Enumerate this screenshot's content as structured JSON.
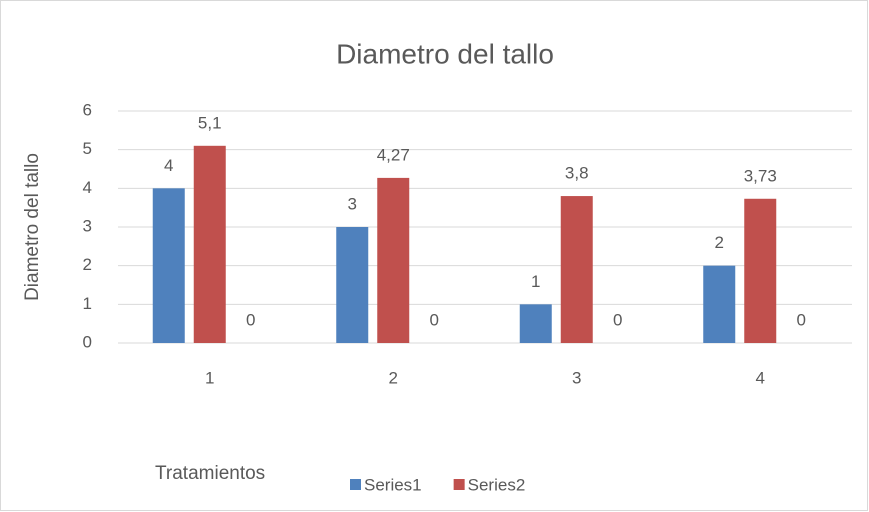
{
  "chart_data": {
    "type": "bar",
    "title": "Diametro del tallo",
    "ylabel": "Diametro del tallo",
    "xlabel": "Tratamientos",
    "categories": [
      "1",
      "2",
      "3",
      "4"
    ],
    "series": [
      {
        "name": "Series1",
        "color": "#4f81bd",
        "values": [
          4,
          3,
          1,
          2
        ]
      },
      {
        "name": "Series2",
        "color": "#c0504d",
        "values": [
          5.1,
          4.27,
          3.8,
          3.73
        ],
        "value_labels": [
          "5,1",
          "4,27",
          "3,8",
          "3,73"
        ]
      },
      {
        "color": "#9bbb59",
        "values": [
          0,
          0,
          0,
          0
        ]
      }
    ],
    "ylim": [
      0,
      6
    ],
    "yticks": [
      0,
      1,
      2,
      3,
      4,
      5,
      6
    ],
    "grid": true,
    "legend": "bottom"
  }
}
